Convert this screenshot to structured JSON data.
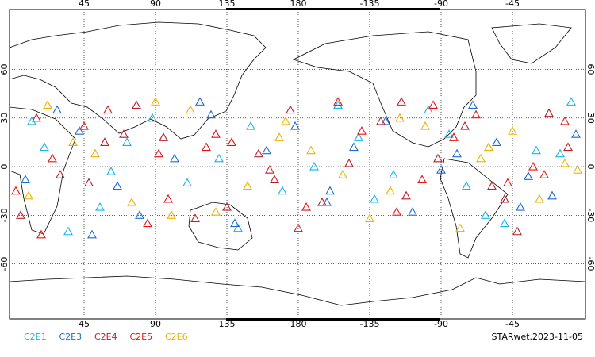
{
  "chart_data": {
    "type": "scatter",
    "title": "STARwet.2023-11-05",
    "xlim": [
      -2,
      361
    ],
    "ylim": [
      -94,
      97
    ],
    "xticks": [
      45,
      90,
      135,
      180,
      {
        "value": 225,
        "label": "-135"
      },
      {
        "value": 270,
        "label": "-90"
      },
      {
        "value": 315,
        "label": "-45"
      }
    ],
    "yticks": [
      -60,
      -30,
      0,
      30,
      60
    ],
    "grid": true,
    "series": [
      {
        "name": "C2E1",
        "color": "#18b4e8",
        "x": [
          20,
          55,
          88,
          130,
          170,
          205,
          240,
          275,
          310,
          345,
          35,
          72,
          110,
          150,
          190,
          228,
          262,
          298,
          330,
          12,
          62,
          142,
          218,
          286,
          352
        ],
        "values": [
          12,
          -25,
          30,
          5,
          -15,
          38,
          -5,
          20,
          -35,
          8,
          -40,
          15,
          -10,
          25,
          0,
          -20,
          35,
          -30,
          10,
          28,
          -3,
          -38,
          18,
          -12,
          40
        ]
      },
      {
        "name": "C2E3",
        "color": "#1e6cd0",
        "x": [
          8,
          42,
          80,
          118,
          160,
          198,
          235,
          270,
          305,
          340,
          28,
          66,
          102,
          140,
          178,
          215,
          252,
          290,
          325,
          355,
          50,
          125,
          200,
          280,
          320
        ],
        "values": [
          -8,
          22,
          -30,
          40,
          10,
          -22,
          28,
          -2,
          15,
          -18,
          35,
          -12,
          5,
          -35,
          25,
          12,
          -28,
          38,
          -6,
          20,
          -42,
          32,
          -15,
          8,
          -25
        ]
      },
      {
        "name": "C2E4",
        "color": "#b8202c",
        "x": [
          15,
          48,
          95,
          135,
          175,
          212,
          248,
          285,
          318,
          350,
          30,
          78,
          115,
          155,
          195,
          232,
          268,
          302,
          338,
          5,
          70,
          165,
          245,
          310,
          58
        ],
        "values": [
          30,
          -10,
          18,
          -25,
          35,
          2,
          -18,
          25,
          -40,
          12,
          -5,
          38,
          -32,
          8,
          -22,
          28,
          5,
          -12,
          33,
          -30,
          20,
          -8,
          40,
          -20,
          15
        ]
      },
      {
        "name": "C2E5",
        "color": "#e81414",
        "x": [
          25,
          60,
          98,
          138,
          180,
          220,
          258,
          292,
          328,
          2,
          45,
          85,
          122,
          162,
          205,
          242,
          278,
          312,
          348,
          18,
          92,
          185,
          265,
          335,
          128
        ],
        "values": [
          5,
          35,
          -20,
          15,
          -38,
          22,
          -8,
          32,
          0,
          -15,
          25,
          -35,
          12,
          -2,
          40,
          -28,
          18,
          -10,
          28,
          -42,
          8,
          -25,
          38,
          -5,
          20
        ]
      },
      {
        "name": "C2E6",
        "color": "#f0b000",
        "x": [
          10,
          52,
          90,
          128,
          168,
          208,
          244,
          282,
          315,
          348,
          38,
          75,
          112,
          148,
          188,
          225,
          260,
          295,
          332,
          22,
          100,
          172,
          238,
          300,
          356
        ],
        "values": [
          -18,
          8,
          40,
          -28,
          18,
          -5,
          30,
          -38,
          22,
          2,
          15,
          -22,
          35,
          -12,
          10,
          -32,
          25,
          5,
          -20,
          38,
          -30,
          28,
          -15,
          12,
          -2
        ]
      }
    ]
  }
}
